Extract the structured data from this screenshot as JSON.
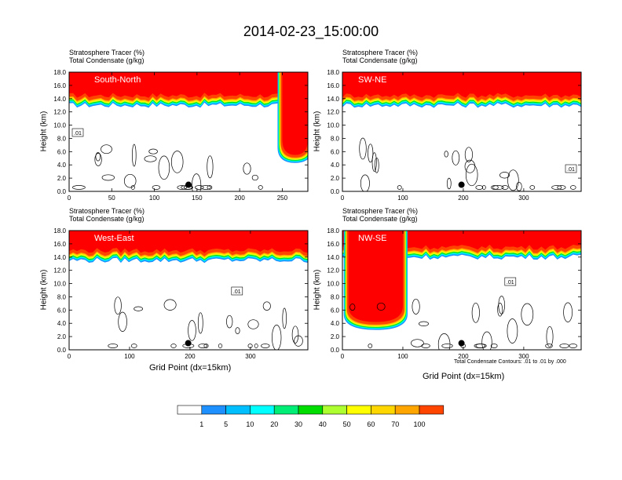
{
  "title": "2014-02-23_15:00:00",
  "panels": [
    {
      "label": "South-North",
      "title1": "Stratosphere Tracer   (%)",
      "title2": "Total Condensate   (g/kg)",
      "ylabel": "Height (km)",
      "xlabel": "",
      "xticks": [
        "0",
        "50",
        "100",
        "150",
        "200",
        "250"
      ],
      "xmax": 280,
      "contour_label": ".01"
    },
    {
      "label": "SW-NE",
      "title1": "Stratosphere Tracer   (%)",
      "title2": "Total Condensate   (g/kg)",
      "ylabel": "Height (km)",
      "xlabel": "",
      "xticks": [
        "0",
        "100",
        "200",
        "300"
      ],
      "xmax": 395,
      "contour_label": ".01"
    },
    {
      "label": "West-East",
      "title1": "Stratosphere Tracer   (%)",
      "title2": "Total Condensate   (g/kg)",
      "ylabel": "Height (km)",
      "xlabel": "Grid Point (dx=15km)",
      "xticks": [
        "0",
        "100",
        "200",
        "300"
      ],
      "xmax": 395,
      "contour_label": ".01"
    },
    {
      "label": "NW-SE",
      "title1": "Stratosphere Tracer   (%)",
      "title2": "Total Condensate   (g/kg)",
      "ylabel": "Height (km)",
      "xlabel": "Grid Point (dx=15km)",
      "xticks": [
        "0",
        "100",
        "200",
        "300"
      ],
      "xmax": 395,
      "contour_label": ".01"
    }
  ],
  "yticks": [
    "0.0",
    "2.0",
    "4.0",
    "6.0",
    "8.0",
    "10.0",
    "12.0",
    "14.0",
    "16.0",
    "18.0"
  ],
  "contour_note": "Total Condensate Contours: .01 to .01 by .000",
  "colorbar": {
    "labels": [
      "1",
      "5",
      "10",
      "20",
      "30",
      "40",
      "50",
      "60",
      "70",
      "100"
    ],
    "colors": [
      "#ffffff",
      "#1e90ff",
      "#00bfff",
      "#00ffff",
      "#00ee76",
      "#00dd00",
      "#adff2f",
      "#ffff00",
      "#ffd700",
      "#ffa500",
      "#ff4500",
      "#ff0000"
    ]
  },
  "chart_data": {
    "type": "heatmap",
    "title": "2014-02-23_15:00:00",
    "ylabel": "Height (km)",
    "xlabel": "Grid Point (dx=15km)",
    "ylim": [
      0,
      18
    ],
    "fields": [
      "Stratosphere Tracer (%)",
      "Total Condensate (g/kg)"
    ],
    "levels": [
      1,
      5,
      10,
      20,
      30,
      40,
      50,
      60,
      70,
      100
    ],
    "panels": [
      {
        "name": "South-North",
        "xlim": [
          0,
          280
        ],
        "tropopause_km": 14.5,
        "tracer_intrusion": {
          "x": [
            250,
            280
          ],
          "bottom_km": 5.5
        },
        "marker": {
          "x": 140,
          "y": 1.0
        }
      },
      {
        "name": "SW-NE",
        "xlim": [
          0,
          395
        ],
        "tropopause_km": 14.5,
        "marker": {
          "x": 197,
          "y": 1.0
        }
      },
      {
        "name": "West-East",
        "xlim": [
          0,
          395
        ],
        "tropopause_km": 15.0,
        "marker": {
          "x": 197,
          "y": 1.0
        }
      },
      {
        "name": "NW-SE",
        "xlim": [
          0,
          395
        ],
        "tropopause_km": 15.5,
        "tracer_intrusion": {
          "x": [
            10,
            100
          ],
          "bottom_km": 4.2
        },
        "marker": {
          "x": 197,
          "y": 1.0
        }
      }
    ]
  }
}
